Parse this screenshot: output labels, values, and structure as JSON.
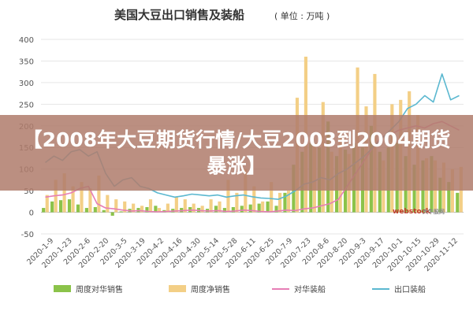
{
  "banner": {
    "text": "【2008年大豆期货行情/大豆2003到2004期货暴涨】"
  },
  "watermark": {
    "brand": "webstock",
    "sub": "大牛股网"
  },
  "chart_data": {
    "type": "bar",
    "title": "美国大豆出口销售及装船",
    "unit": "( 单位 : 万吨 )",
    "ylim": [
      -50,
      400
    ],
    "yticks": [
      400,
      350,
      300,
      250,
      200,
      150,
      100,
      50,
      0,
      -50
    ],
    "xticks": [
      "2020-1-9",
      "2020-1-23",
      "2020-2-6",
      "2020-2-20",
      "2020-3-5",
      "2020-3-19",
      "2020-4-2",
      "2020-4-16",
      "2020-4-30",
      "2020-5-14",
      "2020-5-28",
      "2020-6-11",
      "2020-6-25",
      "2020-7-9",
      "2020-7-23",
      "2020-8-6",
      "2020-8-20",
      "2020-9-3",
      "2020-9-17",
      "2020-10-1",
      "2020-10-15",
      "2020-10-29",
      "2020-11-12"
    ],
    "grid": true,
    "legend_position": "bottom",
    "colors": {
      "weekly_china_sales": "#8bc34a",
      "weekly_net_sales": "#f3cf86",
      "china_shipments": "#e67eb5",
      "export_shipments": "#5bb8d0"
    },
    "series": [
      {
        "name": "周度对华销售",
        "kind": "bar",
        "values": [
          10,
          25,
          28,
          30,
          18,
          10,
          12,
          5,
          -8,
          2,
          8,
          10,
          12,
          15,
          5,
          8,
          10,
          12,
          10,
          8,
          15,
          10,
          12,
          15,
          18,
          20,
          25,
          15,
          45,
          110,
          140,
          160,
          150,
          210,
          130,
          145,
          160,
          150,
          200,
          140,
          150,
          160,
          130,
          110,
          120,
          130,
          80,
          70,
          45
        ]
      },
      {
        "name": "周度净销售",
        "kind": "bar",
        "values": [
          40,
          75,
          90,
          60,
          70,
          55,
          85,
          40,
          30,
          25,
          20,
          15,
          30,
          10,
          20,
          35,
          30,
          20,
          15,
          30,
          25,
          75,
          45,
          100,
          60,
          25,
          70,
          45,
          50,
          265,
          360,
          160,
          255,
          140,
          190,
          135,
          335,
          245,
          320,
          120,
          250,
          260,
          280,
          225,
          125,
          120,
          115,
          100,
          105
        ]
      },
      {
        "name": "对华装船",
        "kind": "line",
        "values": [
          35,
          38,
          40,
          45,
          55,
          60,
          20,
          10,
          8,
          5,
          3,
          4,
          2,
          1,
          2,
          3,
          4,
          5,
          4,
          3,
          4,
          2,
          3,
          5,
          4,
          2,
          1,
          3,
          5,
          4,
          8,
          10,
          15,
          20,
          30,
          60,
          90,
          120,
          150,
          175,
          180,
          190,
          195,
          200,
          195,
          205,
          210,
          200,
          190
        ]
      },
      {
        "name": "出口装船",
        "kind": "line",
        "values": [
          115,
          130,
          120,
          140,
          145,
          130,
          140,
          90,
          60,
          75,
          80,
          60,
          55,
          45,
          40,
          35,
          38,
          42,
          40,
          38,
          40,
          35,
          38,
          40,
          36,
          33,
          32,
          30,
          38,
          50,
          65,
          70,
          80,
          75,
          90,
          100,
          115,
          130,
          150,
          170,
          190,
          210,
          240,
          250,
          270,
          255,
          320,
          260,
          270
        ]
      }
    ]
  }
}
